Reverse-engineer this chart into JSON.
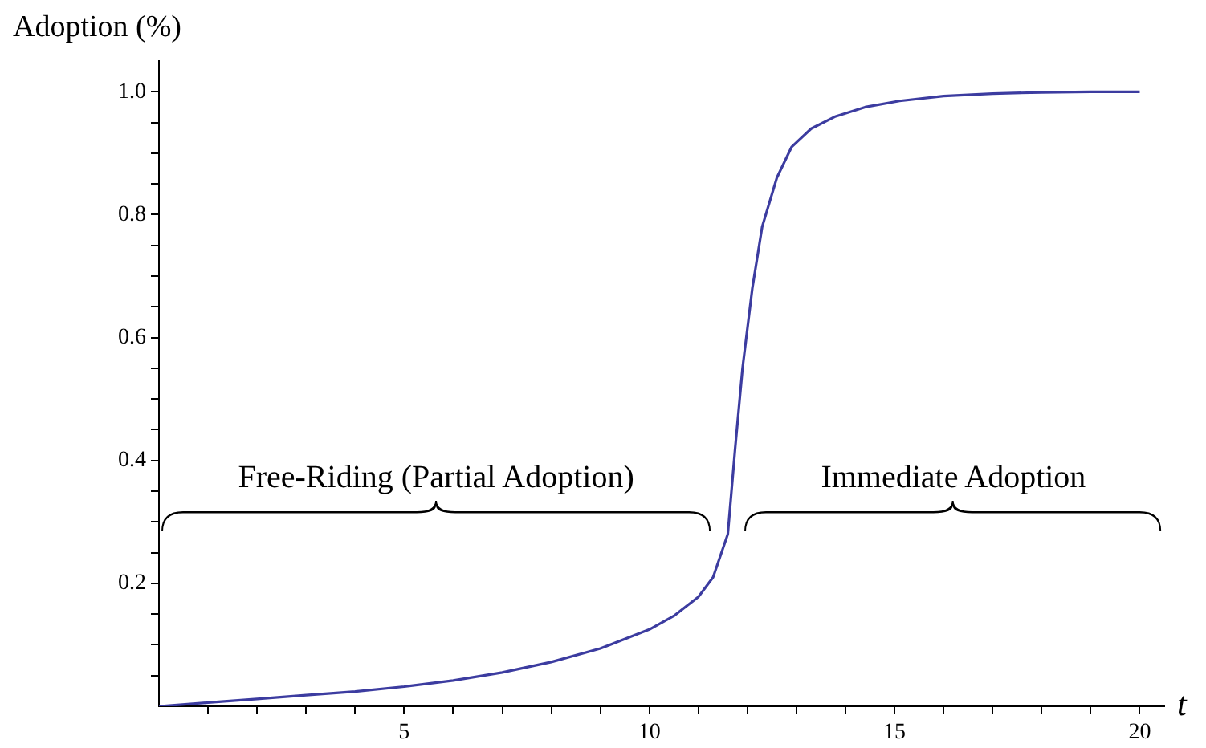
{
  "chart_data": {
    "type": "line",
    "ylabel": "Adoption (%)",
    "xlabel": "t",
    "x": [
      0,
      1,
      2,
      3,
      4,
      5,
      6,
      7,
      8,
      9,
      10,
      10.5,
      11,
      11.3,
      11.6,
      11.75,
      11.9,
      12.1,
      12.3,
      12.6,
      12.9,
      13.3,
      13.8,
      14.4,
      15.1,
      16,
      17,
      18,
      19,
      20
    ],
    "series": [
      {
        "color": "#3c3ca0",
        "values": [
          0,
          0.006,
          0.012,
          0.018,
          0.024,
          0.032,
          0.042,
          0.055,
          0.072,
          0.094,
          0.125,
          0.147,
          0.178,
          0.21,
          0.28,
          0.42,
          0.55,
          0.68,
          0.78,
          0.86,
          0.91,
          0.94,
          0.96,
          0.975,
          0.985,
          0.993,
          0.997,
          0.999,
          1,
          1
        ]
      }
    ],
    "xlim": [
      0,
      20.5
    ],
    "ylim": [
      0,
      1.05
    ],
    "xticks": [
      {
        "value": 1,
        "label": null
      },
      {
        "value": 2,
        "label": null
      },
      {
        "value": 3,
        "label": null
      },
      {
        "value": 4,
        "label": null
      },
      5,
      {
        "value": 6,
        "label": null
      },
      {
        "value": 7,
        "label": null
      },
      {
        "value": 8,
        "label": null
      },
      {
        "value": 9,
        "label": null
      },
      10,
      {
        "value": 11,
        "label": null
      },
      {
        "value": 12,
        "label": null
      },
      {
        "value": 13,
        "label": null
      },
      {
        "value": 14,
        "label": null
      },
      15,
      {
        "value": 16,
        "label": null
      },
      {
        "value": 17,
        "label": null
      },
      {
        "value": 18,
        "label": null
      },
      {
        "value": 19,
        "label": null
      },
      20
    ],
    "yticks": [
      {
        "value": 0.05,
        "label": null
      },
      {
        "value": 0.1,
        "label": null
      },
      {
        "value": 0.15,
        "label": null
      },
      {
        "value": 0.2,
        "label": "0.2"
      },
      {
        "value": 0.25,
        "label": null
      },
      {
        "value": 0.3,
        "label": null
      },
      {
        "value": 0.35,
        "label": null
      },
      {
        "value": 0.4,
        "label": "0.4"
      },
      {
        "value": 0.45,
        "label": null
      },
      {
        "value": 0.5,
        "label": null
      },
      {
        "value": 0.55,
        "label": null
      },
      {
        "value": 0.6,
        "label": "0.6"
      },
      {
        "value": 0.65,
        "label": null
      },
      {
        "value": 0.7,
        "label": null
      },
      {
        "value": 0.75,
        "label": null
      },
      {
        "value": 0.8,
        "label": "0.8"
      },
      {
        "value": 0.85,
        "label": null
      },
      {
        "value": 0.9,
        "label": null
      },
      {
        "value": 0.95,
        "label": null
      },
      {
        "value": 1.0,
        "label": "1.0"
      }
    ],
    "annotations": [
      "Free-Riding (Partial Adoption)",
      "Immediate Adoption"
    ],
    "grid": false,
    "legend": false,
    "marker": "none",
    "line_style": "solid"
  }
}
